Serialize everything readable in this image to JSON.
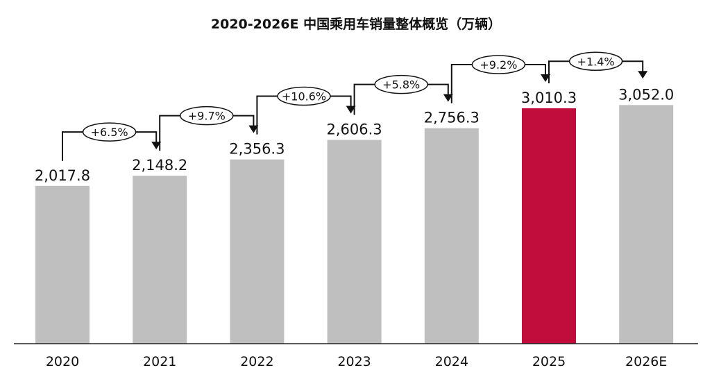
{
  "chart_data": {
    "type": "bar",
    "title": "2020-2026E 中国乘用车销量整体概览（万辆）",
    "categories": [
      "2020",
      "2021",
      "2022",
      "2023",
      "2024",
      "2025",
      "2026E"
    ],
    "values": [
      2017.8,
      2148.2,
      2356.3,
      2606.3,
      2756.3,
      3010.3,
      3052.0
    ],
    "data_labels": [
      "2,017.8",
      "2,148.2",
      "2,356.3",
      "2,606.3",
      "2,756.3",
      "3,010.3",
      "3,052.0"
    ],
    "growth_labels": [
      "+6.5%",
      "+9.7%",
      "+10.6%",
      "+5.8%",
      "+9.2%",
      "+1.4%"
    ],
    "ylim": [
      0,
      3100
    ],
    "grid": false,
    "colors": {
      "default": "#bfbfbf",
      "highlight": "#c00d3c",
      "highlight_category": "2025"
    }
  }
}
